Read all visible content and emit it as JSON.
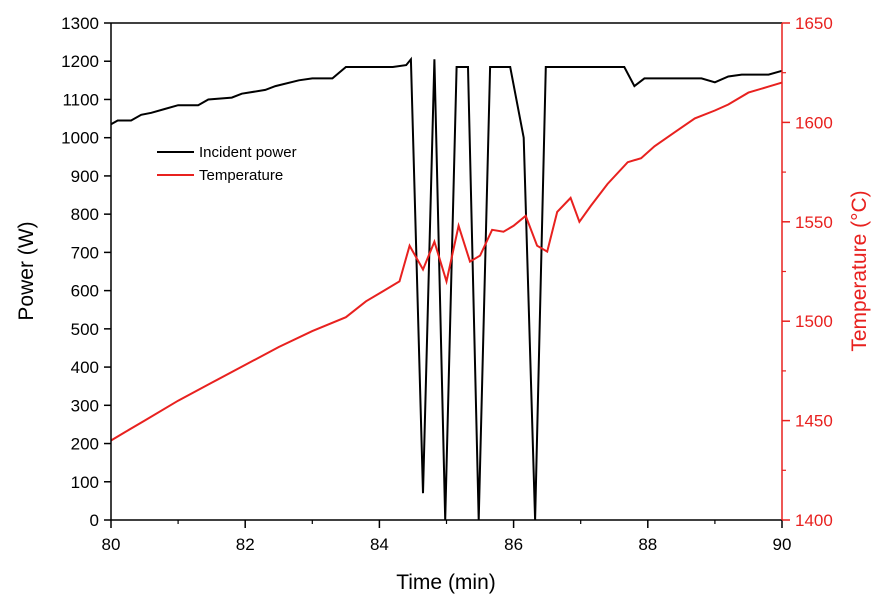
{
  "chart_data": {
    "type": "line",
    "xlabel": "Time (min)",
    "ylabel": "Power (W)",
    "y2label": "Temperature (°C)",
    "xlim": [
      80,
      90
    ],
    "ylim": [
      0,
      1300
    ],
    "y2lim": [
      1400,
      1650
    ],
    "x_ticks": [
      "80",
      "82",
      "84",
      "86",
      "88",
      "90"
    ],
    "y_ticks": [
      "0",
      "100",
      "200",
      "300",
      "400",
      "500",
      "600",
      "700",
      "800",
      "900",
      "1000",
      "1100",
      "1200",
      "1300"
    ],
    "y2_ticks": [
      "1400",
      "1450",
      "1500",
      "1550",
      "1600",
      "1650"
    ],
    "grid": false,
    "legend_position": "upper-left",
    "series": [
      {
        "name": "Incident power",
        "axis": "left",
        "color": "#000000",
        "x": [
          80.0,
          80.1,
          80.3,
          80.45,
          80.6,
          80.8,
          81.0,
          81.3,
          81.45,
          81.8,
          81.95,
          82.3,
          82.45,
          82.8,
          83.0,
          83.3,
          83.5,
          83.7,
          84.0,
          84.2,
          84.4,
          84.47,
          84.65,
          84.82,
          84.98,
          85.15,
          85.32,
          85.48,
          85.65,
          85.82,
          85.95,
          86.15,
          86.32,
          86.48,
          86.65,
          87.0,
          87.4,
          87.65,
          87.8,
          87.95,
          88.2,
          88.5,
          88.8,
          89.0,
          89.2,
          89.4,
          89.6,
          89.8,
          90.0
        ],
        "y": [
          1035,
          1045,
          1045,
          1060,
          1065,
          1075,
          1085,
          1085,
          1100,
          1105,
          1115,
          1125,
          1135,
          1150,
          1155,
          1155,
          1185,
          1185,
          1185,
          1185,
          1190,
          1205,
          70,
          1205,
          0,
          1185,
          1185,
          0,
          1185,
          1185,
          1185,
          1000,
          0,
          1185,
          1185,
          1185,
          1185,
          1185,
          1135,
          1155,
          1155,
          1155,
          1155,
          1145,
          1160,
          1165,
          1165,
          1165,
          1175
        ]
      },
      {
        "name": "Temperature",
        "axis": "right",
        "color": "#e8211f",
        "x": [
          80.0,
          80.2,
          80.5,
          81.0,
          81.5,
          82.0,
          82.5,
          83.0,
          83.5,
          83.8,
          84.0,
          84.3,
          84.45,
          84.65,
          84.82,
          85.0,
          85.18,
          85.35,
          85.5,
          85.68,
          85.85,
          86.0,
          86.18,
          86.35,
          86.5,
          86.65,
          86.85,
          86.98,
          87.15,
          87.4,
          87.7,
          87.9,
          88.1,
          88.4,
          88.7,
          89.0,
          89.2,
          89.5,
          89.8,
          90.0
        ],
        "y": [
          1440,
          1444,
          1450,
          1460,
          1469,
          1478,
          1487,
          1495,
          1502,
          1510,
          1514,
          1520,
          1538,
          1526,
          1540,
          1520,
          1548,
          1530,
          1533,
          1546,
          1545,
          1548,
          1553,
          1538,
          1535,
          1555,
          1562,
          1550,
          1558,
          1569,
          1580,
          1582,
          1588,
          1595,
          1602,
          1606,
          1609,
          1615,
          1618,
          1620
        ]
      }
    ]
  }
}
